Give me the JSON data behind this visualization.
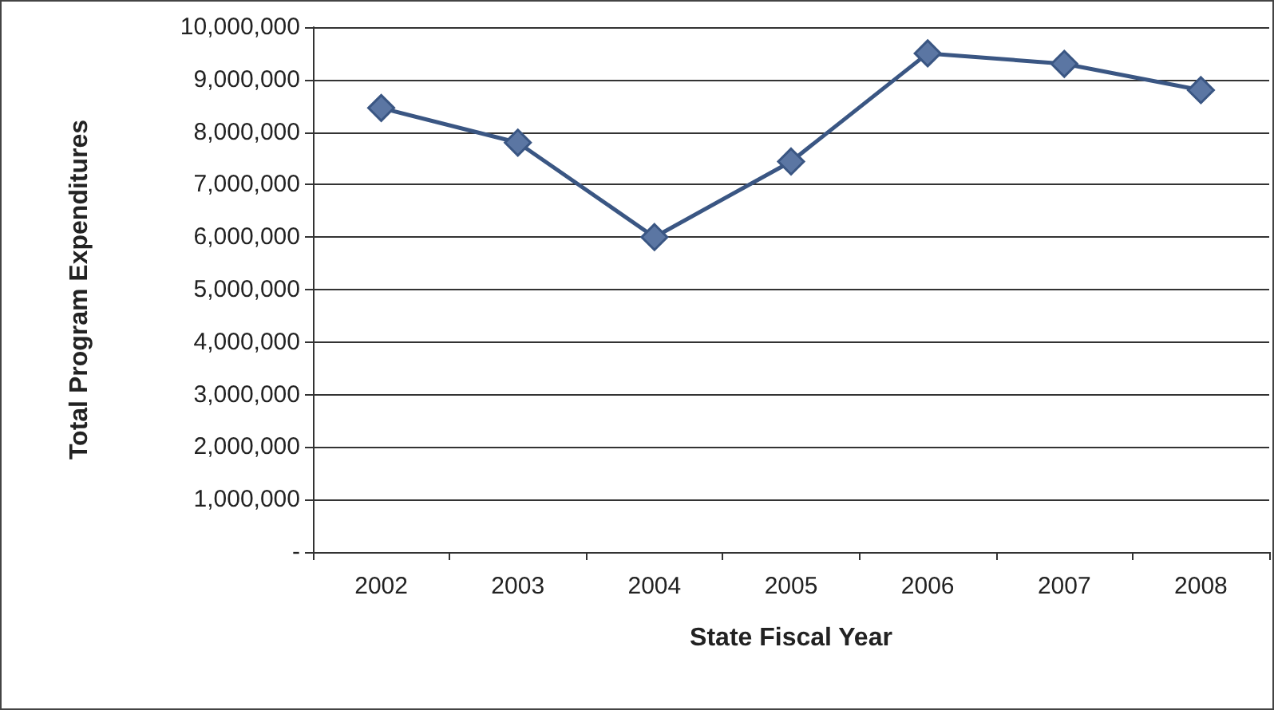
{
  "chart_data": {
    "type": "line",
    "xlabel": "State Fiscal Year",
    "ylabel": "Total Program Expenditures",
    "categories": [
      "2002",
      "2003",
      "2004",
      "2005",
      "2006",
      "2007",
      "2008"
    ],
    "series": [
      {
        "color": "#3a5683",
        "values": [
          8460000,
          7800000,
          6000000,
          7440000,
          9500000,
          9300000,
          8800000
        ]
      }
    ],
    "ylim": [
      0,
      10000000
    ],
    "yticks": [
      {
        "value": 0,
        "label": "-"
      },
      {
        "value": 1000000,
        "label": "1,000,000"
      },
      {
        "value": 2000000,
        "label": "2,000,000"
      },
      {
        "value": 3000000,
        "label": "3,000,000"
      },
      {
        "value": 4000000,
        "label": "4,000,000"
      },
      {
        "value": 5000000,
        "label": "5,000,000"
      },
      {
        "value": 6000000,
        "label": "6,000,000"
      },
      {
        "value": 7000000,
        "label": "7,000,000"
      },
      {
        "value": 8000000,
        "label": "8,000,000"
      },
      {
        "value": 9000000,
        "label": "9,000,000"
      },
      {
        "value": 10000000,
        "label": "10,000,000"
      }
    ],
    "grid": "y",
    "marker": "diamond",
    "line_style": "solid"
  }
}
